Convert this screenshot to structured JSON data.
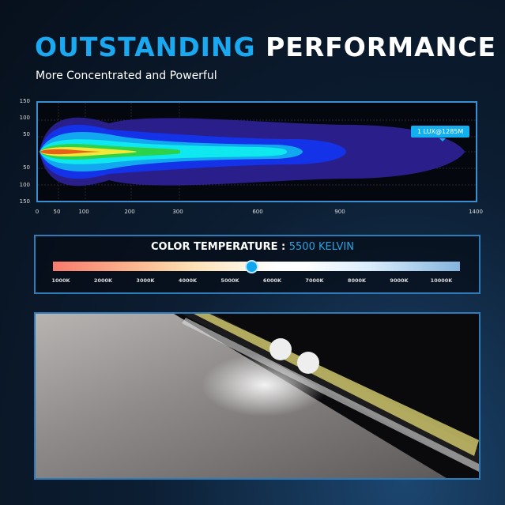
{
  "header": {
    "title_accent": "OUTSTANDING",
    "title_rest": "PERFORMANCE",
    "subtitle": "More Concentrated and Powerful"
  },
  "beam_chart": {
    "y_ticks": [
      "150",
      "100",
      "50",
      "50",
      "100",
      "150"
    ],
    "x_ticks": [
      "0",
      "50",
      "100",
      "200",
      "300",
      "600",
      "900",
      "1400"
    ],
    "callout": "1 LUX@1285M"
  },
  "color_temperature": {
    "label": "COLOR TEMPERATURE :",
    "value": "5500 KELVIN",
    "value_k": 5500,
    "scale": [
      "1000K",
      "2000K",
      "3000K",
      "4000K",
      "5000K",
      "6000K",
      "7000K",
      "8000K",
      "9000K",
      "10000K"
    ],
    "accent": "#2ba3e0"
  }
}
